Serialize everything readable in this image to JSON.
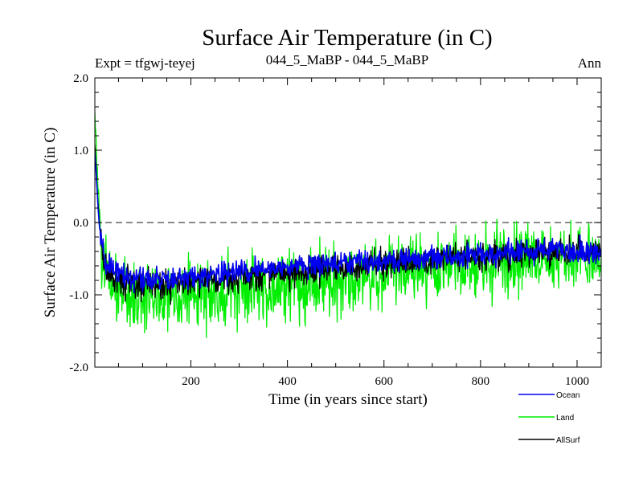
{
  "chart_data": {
    "type": "line",
    "title": "Surface Air Temperature (in C)",
    "subtitle_left": "Expt = tfgwj-teyej",
    "subtitle_center": "044_5_MaBP - 044_5_MaBP",
    "subtitle_right": "Ann",
    "xlabel": "Time (in years since start)",
    "ylabel": "Surface Air Temperature (in C)",
    "xlim": [
      1,
      1050
    ],
    "ylim": [
      -2.0,
      2.0
    ],
    "x_ticks": [
      200,
      400,
      600,
      800,
      1000
    ],
    "x_tick_labels": [
      "200",
      "400",
      "600",
      "800",
      "1000"
    ],
    "y_ticks": [
      -2.0,
      -1.0,
      0.0,
      1.0,
      2.0
    ],
    "y_tick_labels": [
      "-2.0",
      "-1.0",
      "0.0",
      "1.0",
      "2.0"
    ],
    "reference_line": {
      "y": 0.0,
      "style": "dashed"
    },
    "series": [
      {
        "name": "Land",
        "color": "#00ee00",
        "noise": 0.24,
        "anchors": [
          [
            1,
            1.5
          ],
          [
            5,
            0.9
          ],
          [
            10,
            0.2
          ],
          [
            15,
            -0.3
          ],
          [
            25,
            -0.8
          ],
          [
            50,
            -0.95
          ],
          [
            100,
            -1.05
          ],
          [
            150,
            -1.0
          ],
          [
            200,
            -1.0
          ],
          [
            300,
            -0.95
          ],
          [
            400,
            -0.85
          ],
          [
            500,
            -0.8
          ],
          [
            600,
            -0.7
          ],
          [
            700,
            -0.6
          ],
          [
            800,
            -0.55
          ],
          [
            900,
            -0.5
          ],
          [
            1000,
            -0.45
          ],
          [
            1050,
            -0.5
          ]
        ]
      },
      {
        "name": "AllSurf",
        "color": "#000000",
        "noise": 0.1,
        "anchors": [
          [
            1,
            1.1
          ],
          [
            5,
            0.6
          ],
          [
            10,
            0.0
          ],
          [
            15,
            -0.35
          ],
          [
            25,
            -0.7
          ],
          [
            50,
            -0.8
          ],
          [
            100,
            -0.88
          ],
          [
            150,
            -0.85
          ],
          [
            200,
            -0.82
          ],
          [
            300,
            -0.75
          ],
          [
            400,
            -0.68
          ],
          [
            500,
            -0.62
          ],
          [
            600,
            -0.58
          ],
          [
            700,
            -0.52
          ],
          [
            800,
            -0.48
          ],
          [
            900,
            -0.43
          ],
          [
            1000,
            -0.4
          ],
          [
            1050,
            -0.42
          ]
        ]
      },
      {
        "name": "Ocean",
        "color": "#0000ee",
        "noise": 0.08,
        "anchors": [
          [
            1,
            1.0
          ],
          [
            5,
            0.5
          ],
          [
            10,
            0.0
          ],
          [
            15,
            -0.35
          ],
          [
            25,
            -0.6
          ],
          [
            50,
            -0.72
          ],
          [
            100,
            -0.8
          ],
          [
            150,
            -0.78
          ],
          [
            200,
            -0.75
          ],
          [
            300,
            -0.68
          ],
          [
            400,
            -0.62
          ],
          [
            500,
            -0.57
          ],
          [
            600,
            -0.53
          ],
          [
            700,
            -0.48
          ],
          [
            800,
            -0.45
          ],
          [
            900,
            -0.4
          ],
          [
            1000,
            -0.38
          ],
          [
            1050,
            -0.4
          ]
        ]
      }
    ],
    "legend": {
      "placement": "bottom-right",
      "entries": [
        {
          "label": "Ocean",
          "color": "#0000ee"
        },
        {
          "label": "Land",
          "color": "#00ee00"
        },
        {
          "label": "AllSurf",
          "color": "#000000"
        }
      ]
    }
  }
}
